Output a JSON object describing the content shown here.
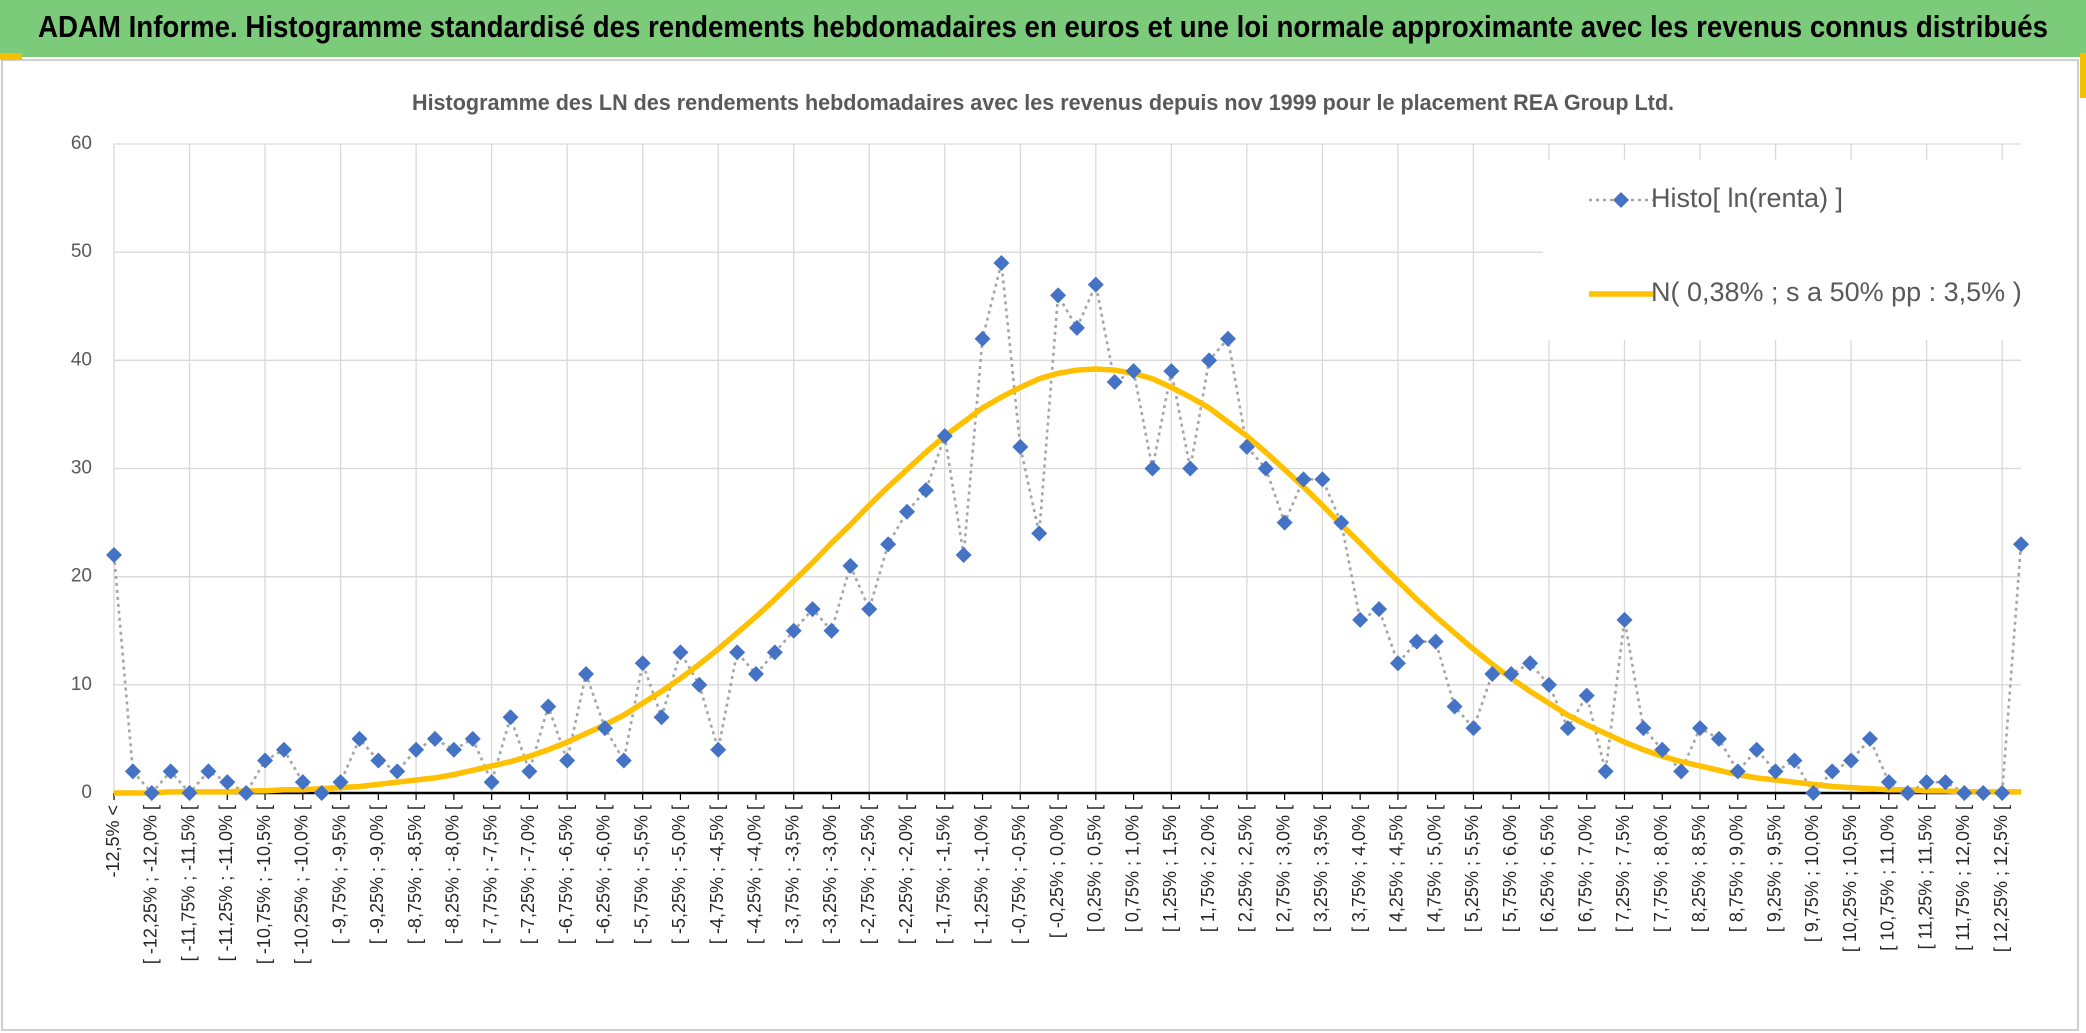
{
  "header": {
    "title": "ADAM Informe. Histogramme standardisé des rendements hebdomadaires en euros et une loi normale approximante avec les revenus connus distribués"
  },
  "chart_data": {
    "type": "line",
    "title": "Histogramme des LN des rendements hebdomadaires avec les revenus depuis nov 1999 pour le placement REA Group Ltd.",
    "categories": [
      "-12,5% <",
      null,
      "[ -12,25% ; -12,0% [",
      null,
      "[ -11,75% ; -11,5% [",
      null,
      "[ -11,25% ; -11,0% [",
      null,
      "[ -10,75% ; -10,5% [",
      null,
      "[ -10,25% ; -10,0% [",
      null,
      "[ -9,75% ; -9,5% [",
      null,
      "[ -9,25% ; -9,0% [",
      null,
      "[ -8,75% ; -8,5% [",
      null,
      "[ -8,25% ; -8,0% [",
      null,
      "[ -7,75% ; -7,5% [",
      null,
      "[ -7,25% ; -7,0% [",
      null,
      "[ -6,75% ; -6,5% [",
      null,
      "[ -6,25% ; -6,0% [",
      null,
      "[ -5,75% ; -5,5% [",
      null,
      "[ -5,25% ; -5,0% [",
      null,
      "[ -4,75% ; -4,5% [",
      null,
      "[ -4,25% ; -4,0% [",
      null,
      "[ -3,75% ; -3,5% [",
      null,
      "[ -3,25% ; -3,0% [",
      null,
      "[ -2,75% ; -2,5% [",
      null,
      "[ -2,25% ; -2,0% [",
      null,
      "[ -1,75% ; -1,5% [",
      null,
      "[ -1,25% ; -1,0% [",
      null,
      "[ -0,75% ; -0,5% [",
      null,
      "[ -0,25% ; 0,0% [",
      null,
      "[ 0,25% ; 0,5% [",
      null,
      "[ 0,75% ; 1,0% [",
      null,
      "[ 1,25% ; 1,5% [",
      null,
      "[ 1,75% ; 2,0% [",
      null,
      "[ 2,25% ; 2,5% [",
      null,
      "[ 2,75% ; 3,0% [",
      null,
      "[ 3,25% ; 3,5% [",
      null,
      "[ 3,75% ; 4,0% [",
      null,
      "[ 4,25% ; 4,5% [",
      null,
      "[ 4,75% ; 5,0% [",
      null,
      "[ 5,25% ; 5,5% [",
      null,
      "[ 5,75% ; 6,0% [",
      null,
      "[ 6,25% ; 6,5% [",
      null,
      "[ 6,75% ; 7,0% [",
      null,
      "[ 7,25% ; 7,5% [",
      null,
      "[ 7,75% ; 8,0% [",
      null,
      "[ 8,25% ; 8,5% [",
      null,
      "[ 8,75% ; 9,0% [",
      null,
      "[ 9,25% ; 9,5% [",
      null,
      "[ 9,75% ; 10,0% [",
      null,
      "[ 10,25% ; 10,5% [",
      null,
      "[ 10,75% ; 11,0% [",
      null,
      "[ 11,25% ; 11,5% [",
      null,
      "[ 11,75% ; 12,0% [",
      null,
      "[ 12,25% ; 12,5% [",
      null
    ],
    "series": [
      {
        "name": "Histo[ ln(renta) ]",
        "color": "#4472c4",
        "marker": "diamond",
        "line_color": "#a5a5a5",
        "line_style": "dotted",
        "values": [
          22,
          2,
          0,
          2,
          0,
          2,
          1,
          0,
          3,
          4,
          1,
          0,
          1,
          5,
          3,
          2,
          4,
          5,
          4,
          5,
          1,
          7,
          2,
          8,
          3,
          11,
          6,
          3,
          12,
          7,
          13,
          10,
          4,
          13,
          11,
          13,
          15,
          17,
          15,
          21,
          17,
          23,
          26,
          28,
          33,
          22,
          42,
          49,
          32,
          24,
          46,
          43,
          47,
          38,
          39,
          30,
          39,
          30,
          40,
          42,
          32,
          30,
          25,
          29,
          29,
          25,
          16,
          17,
          12,
          14,
          14,
          8,
          6,
          11,
          11,
          12,
          10,
          6,
          9,
          2,
          16,
          6,
          4,
          2,
          6,
          5,
          2,
          4,
          2,
          3,
          0,
          2,
          3,
          5,
          1,
          0,
          1,
          1,
          0,
          0,
          0,
          23
        ]
      },
      {
        "name": "N( 0,38% ; s a 50% pp : 3,5% )",
        "color": "#ffc000",
        "marker": "none",
        "line_style": "solid",
        "values": [
          0.0,
          0.0,
          0.0,
          0.1,
          0.1,
          0.1,
          0.1,
          0.2,
          0.2,
          0.3,
          0.3,
          0.4,
          0.5,
          0.6,
          0.8,
          1.0,
          1.2,
          1.4,
          1.7,
          2.1,
          2.5,
          2.9,
          3.4,
          4.0,
          4.7,
          5.5,
          6.3,
          7.2,
          8.3,
          9.4,
          10.6,
          11.9,
          13.3,
          14.8,
          16.3,
          17.9,
          19.6,
          21.3,
          23.1,
          24.8,
          26.6,
          28.3,
          29.9,
          31.5,
          33.0,
          34.3,
          35.6,
          36.6,
          37.5,
          38.3,
          38.8,
          39.1,
          39.2,
          39.1,
          38.8,
          38.3,
          37.5,
          36.6,
          35.6,
          34.3,
          33.0,
          31.5,
          29.9,
          28.3,
          26.6,
          24.8,
          23.1,
          21.3,
          19.6,
          17.9,
          16.3,
          14.8,
          13.3,
          11.9,
          10.6,
          9.4,
          8.3,
          7.2,
          6.3,
          5.5,
          4.7,
          4.0,
          3.4,
          2.9,
          2.5,
          2.1,
          1.7,
          1.4,
          1.2,
          1.0,
          0.8,
          0.6,
          0.5,
          0.4,
          0.3,
          0.3,
          0.2,
          0.2,
          0.1,
          0.1,
          0.1,
          0.1
        ]
      }
    ],
    "ylim": [
      0,
      60
    ],
    "yticks": [
      0,
      10,
      20,
      30,
      40,
      50,
      60
    ],
    "grid": true,
    "legend": "top-right"
  }
}
